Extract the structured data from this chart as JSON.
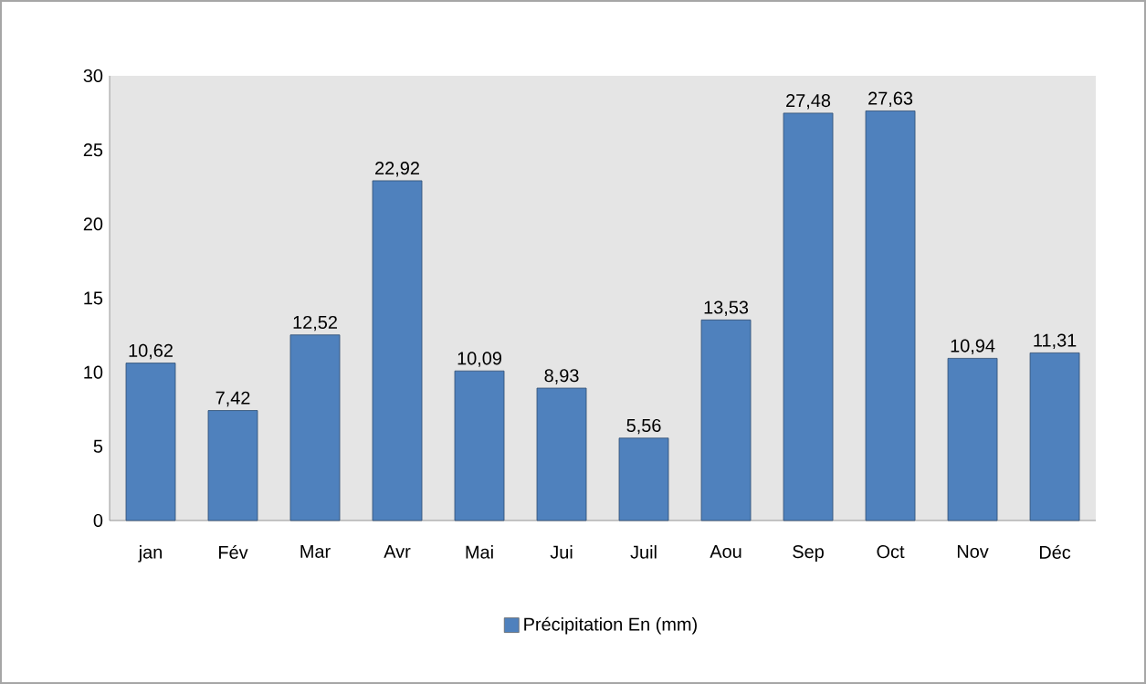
{
  "chart_data": {
    "type": "bar",
    "categories": [
      "jan",
      "Fév",
      "Mar",
      "Avr",
      "Mai",
      "Jui",
      "Juil",
      "Aou",
      "Sep",
      "Oct",
      "Nov",
      "Déc"
    ],
    "series": [
      {
        "name": "Précipitation En (mm)",
        "color": "#4f81bd",
        "values": [
          10.62,
          7.42,
          12.52,
          22.92,
          10.09,
          8.93,
          5.56,
          13.53,
          27.48,
          27.63,
          10.94,
          11.31
        ],
        "value_labels": [
          "10,62",
          "7,42",
          "12,52",
          "22,92",
          "10,09",
          "8,93",
          "5,56",
          "13,53",
          "27,48",
          "27,63",
          "10,94",
          "11,31"
        ]
      }
    ],
    "ylim": [
      0,
      30
    ],
    "yticks": [
      0,
      5,
      10,
      15,
      20,
      25,
      30
    ],
    "legend": "bottom"
  }
}
